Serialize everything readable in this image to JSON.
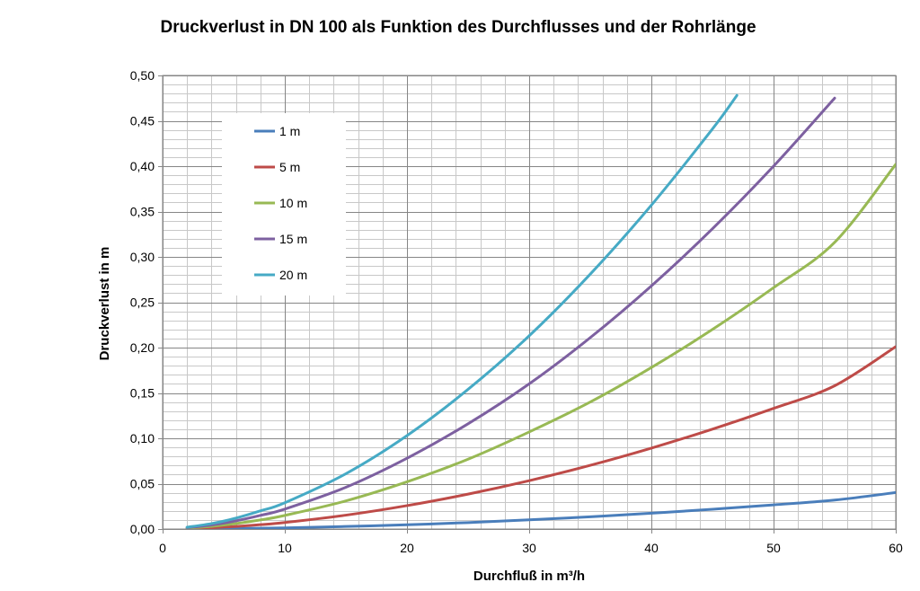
{
  "chart_data": {
    "type": "line",
    "title": "Druckverlust in DN 100 als Funktion des Durchflusses und der Rohrlänge",
    "xlabel": "Durchfluß in m³/h",
    "ylabel": "Druckverlust in m",
    "xlim": [
      0,
      60
    ],
    "ylim": [
      0,
      0.5
    ],
    "x_ticks": [
      0,
      10,
      20,
      30,
      40,
      50,
      60
    ],
    "x_tick_labels": [
      "0",
      "10",
      "20",
      "30",
      "40",
      "50",
      "60"
    ],
    "y_ticks": [
      0,
      0.05,
      0.1,
      0.15,
      0.2,
      0.25,
      0.3,
      0.35,
      0.4,
      0.45,
      0.5
    ],
    "y_tick_labels": [
      "0,00",
      "0,05",
      "0,10",
      "0,15",
      "0,20",
      "0,25",
      "0,30",
      "0,35",
      "0,40",
      "0,45",
      "0,50"
    ],
    "grid": true,
    "legend_position": "top-left",
    "series": [
      {
        "name": "1 m",
        "color": "#4a7ebb",
        "x": [
          2,
          4,
          6,
          8,
          10,
          15,
          20,
          25,
          30,
          35,
          40,
          45,
          50,
          55,
          60
        ],
        "y": [
          0.0001,
          0.0002,
          0.0005,
          0.0009,
          0.0013,
          0.0028,
          0.0047,
          0.0071,
          0.0101,
          0.0135,
          0.0174,
          0.0218,
          0.0266,
          0.0319,
          0.0402
        ]
      },
      {
        "name": "5 m",
        "color": "#be4b48",
        "x": [
          2,
          4,
          6,
          8,
          10,
          15,
          20,
          25,
          30,
          35,
          40,
          45,
          50,
          55,
          60
        ],
        "y": [
          0.0005,
          0.0014,
          0.0029,
          0.0048,
          0.0072,
          0.0153,
          0.0258,
          0.0385,
          0.0533,
          0.0702,
          0.0892,
          0.1101,
          0.133,
          0.1579,
          0.201
        ]
      },
      {
        "name": "10 m",
        "color": "#98b954",
        "x": [
          2,
          4,
          6,
          8,
          10,
          15,
          20,
          25,
          30,
          35,
          40,
          45,
          50,
          55,
          60
        ],
        "y": [
          0.001,
          0.003,
          0.006,
          0.01,
          0.015,
          0.031,
          0.052,
          0.077,
          0.107,
          0.14,
          0.178,
          0.22,
          0.266,
          0.316,
          0.402
        ]
      },
      {
        "name": "15 m",
        "color": "#7d60a0",
        "x": [
          2,
          4,
          6,
          8,
          10,
          15,
          20,
          25,
          30,
          35,
          40,
          45,
          50,
          55
        ],
        "y": [
          0.0015,
          0.0045,
          0.009,
          0.015,
          0.022,
          0.046,
          0.078,
          0.116,
          0.16,
          0.211,
          0.268,
          0.331,
          0.4,
          0.475
        ]
      },
      {
        "name": "20 m",
        "color": "#46aac5",
        "x": [
          2,
          4,
          6,
          8,
          10,
          15,
          20,
          25,
          30,
          35,
          40,
          45,
          47
        ],
        "y": [
          0.002,
          0.006,
          0.012,
          0.02,
          0.029,
          0.061,
          0.103,
          0.154,
          0.213,
          0.281,
          0.357,
          0.441,
          0.478
        ]
      }
    ]
  }
}
